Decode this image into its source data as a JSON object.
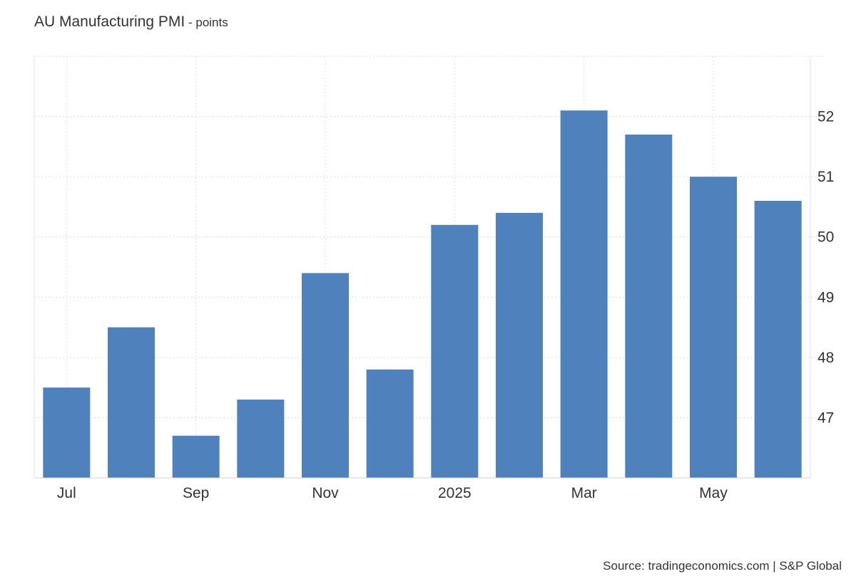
{
  "header": {
    "title": "AU Manufacturing PMI",
    "subtitle": " - points"
  },
  "chart_data": {
    "type": "bar",
    "categories": [
      "Jul",
      "Aug",
      "Sep",
      "Oct",
      "Nov",
      "Dec",
      "2025",
      "Feb",
      "Mar",
      "Apr",
      "May",
      "Jun"
    ],
    "x_tick_labels": [
      "Jul",
      "Sep",
      "Nov",
      "2025",
      "Mar",
      "May"
    ],
    "series": [
      {
        "values": [
          47.5,
          48.5,
          46.7,
          47.3,
          49.4,
          47.8,
          50.2,
          50.4,
          52.1,
          51.7,
          51.0,
          50.6
        ]
      }
    ],
    "ylim": [
      46.0,
      53.0
    ],
    "y_ticks": [
      47,
      48,
      49,
      50,
      51,
      52
    ],
    "xlabel": "",
    "ylabel": "",
    "y_axis_position": "right",
    "grid": true,
    "bar_color": "#4f81bd"
  },
  "footer": {
    "source": "Source: tradingeconomics.com | S&P Global"
  }
}
